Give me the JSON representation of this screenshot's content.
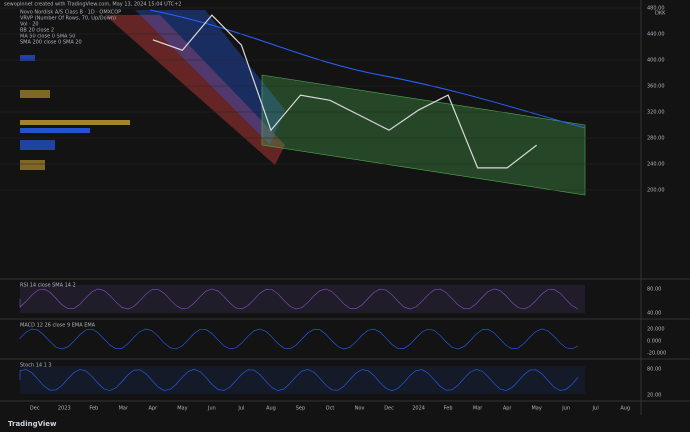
{
  "header": {
    "credit": "sewopinnet created with TradingView.com, May 13, 2024 15:04 UTC+2",
    "currency": "DKK",
    "legend": [
      "Novo Nordisk A/S Class B · 1D · OMXCOP",
      "VRVP (Number Of Rows, 70, Up/Down)",
      "Vol · 20",
      "BB 20 close 2",
      "MA 50 close 0 SMA 50",
      "SMA 200 close 0 SMA 20"
    ]
  },
  "chart_data": {
    "type": "line",
    "color": "#d9d9d9",
    "categories": [
      "Dec",
      "2023",
      "Feb",
      "Mar",
      "Apr",
      "May",
      "Jun",
      "Jul",
      "Aug",
      "Sep",
      "Oct",
      "Nov",
      "Dec",
      "2024",
      "Feb",
      "Mar",
      "Apr",
      "May",
      "Jun",
      "Jul",
      "Aug"
    ],
    "values": [
      null,
      null,
      null,
      null,
      431,
      415,
      469,
      423,
      292,
      346,
      338,
      315,
      292,
      323,
      346,
      234,
      234,
      269,
      null,
      null,
      null
    ],
    "ylim": [
      200,
      480
    ],
    "yticks": [
      {
        "value": 200,
        "label": "200.00"
      },
      {
        "value": 240,
        "label": "240.00"
      },
      {
        "value": 280,
        "label": "280.00"
      },
      {
        "value": 320,
        "label": "320.00"
      },
      {
        "value": 360,
        "label": "360.00"
      },
      {
        "value": 400,
        "label": "400.00"
      },
      {
        "value": 440,
        "label": "440.00"
      },
      {
        "value": 480,
        "label": "480.00"
      }
    ],
    "grid": true
  },
  "panels": [
    {
      "title": "RSI 14 close SMA 14 2",
      "ticks": [
        "80.00",
        "40.00"
      ],
      "color": "#7e57c2"
    },
    {
      "title": "MACD 12 26 close 9 EMA EMA",
      "ticks": [
        "20.000",
        "0.000",
        "-20.000"
      ],
      "color": "#2962ff"
    },
    {
      "title": "Stoch 14 1 3",
      "ticks": [
        "80.00",
        "20.00"
      ],
      "color": "#2962ff"
    }
  ],
  "footer": {
    "brand": "TradingView"
  }
}
